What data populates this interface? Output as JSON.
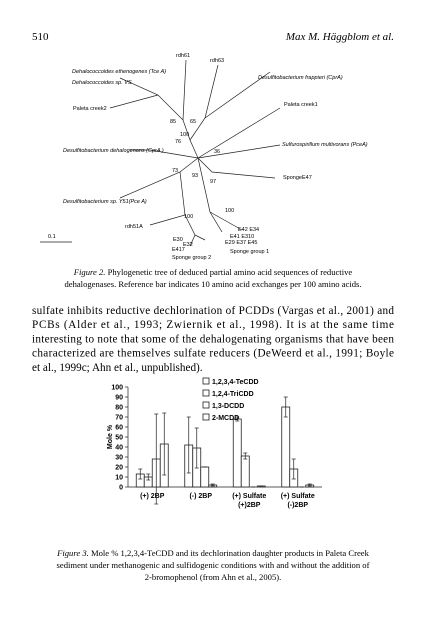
{
  "header": {
    "page_number": "510",
    "running_title": "Max M. Häggblom et al."
  },
  "figure2": {
    "labels": [
      "rdh61",
      "rdh63",
      "Dehalococcoides ethenogenes (Tce A)",
      "Dehalococcoides sp. VS",
      "Desulfitobacterium  frappieri (CprA)",
      "Paleta creek2",
      "Paleta creek1",
      "85",
      "65",
      "100",
      "76",
      "Desulfitobacterium  dehalogenans (CprA )",
      "36",
      "Sulfurospirillum  multivorans (PceA)",
      "73",
      "93",
      "97",
      "SpongeE47",
      "Desulfitobacterium  sp. Y51(Pce A)",
      "100",
      "100",
      "rdh51A",
      "0.1",
      "E42  E34",
      "E41  E310",
      "E29  E37  E45",
      "Sponge group 1",
      "E30",
      "E32",
      "E417",
      "Sponge group 2"
    ],
    "caption_label": "Figure 2.",
    "caption_lines": [
      "Phylogenetic tree of deduced partial amino acid sequences of reductive",
      "dehalogenases. Reference bar indicates 10 amino acid exchanges per 100 amino acids."
    ]
  },
  "body": {
    "lines": [
      "sulfate inhibits reductive dechlorination of PCDDs (Vargas et al., 2001) and",
      "PCBs (Alder et al., 1993; Zwiernik et al., 1998). It is at the same time",
      "interesting to note that some of the dehalogenating organisms that have been",
      "characterized are themselves sulfate reducers (DeWeerd et al., 1991; Boyle",
      "et al., 1999c; Ahn et al., unpublished)."
    ]
  },
  "figure3": {
    "type": "bar",
    "y_label": "Mole %",
    "ylim": [
      0,
      100
    ],
    "yticks": [
      0,
      10,
      20,
      30,
      40,
      50,
      60,
      70,
      80,
      90,
      100
    ],
    "categories": [
      [
        "(+) 2BP"
      ],
      [
        "(-) 2BP"
      ],
      [
        "(+) Sulfate",
        "(+)2BP"
      ],
      [
        "(+) Sulfate",
        "(-)2BP"
      ]
    ],
    "series": [
      {
        "name": "1,2,3,4-TeCDD",
        "color": "#ffffff",
        "values": [
          13,
          42,
          68,
          80
        ],
        "errors": [
          5,
          28,
          2,
          10
        ]
      },
      {
        "name": "1,2,4-TriCDD",
        "color": "#ffffff",
        "values": [
          10,
          39,
          31,
          18
        ],
        "errors": [
          3,
          20,
          3,
          10
        ]
      },
      {
        "name": "1,3-DCDD",
        "color": "#ffffff",
        "values": [
          28,
          20,
          0,
          0
        ],
        "errors": [
          45,
          0,
          0,
          0
        ]
      },
      {
        "name": "2-MCDD",
        "color": "#ffffff",
        "values": [
          43,
          2,
          1,
          2
        ],
        "errors": [
          31,
          1,
          0,
          1
        ]
      }
    ],
    "caption_label": "Figure 3.",
    "caption_lines": [
      "Mole % 1,2,3,4-TeCDD and its dechlorination daughter products in Paleta Creek",
      "sediment under methanogenic and sulfidogenic conditions with and without the addition of",
      "2-bromophenol (from Ahn et al., 2005)."
    ]
  }
}
